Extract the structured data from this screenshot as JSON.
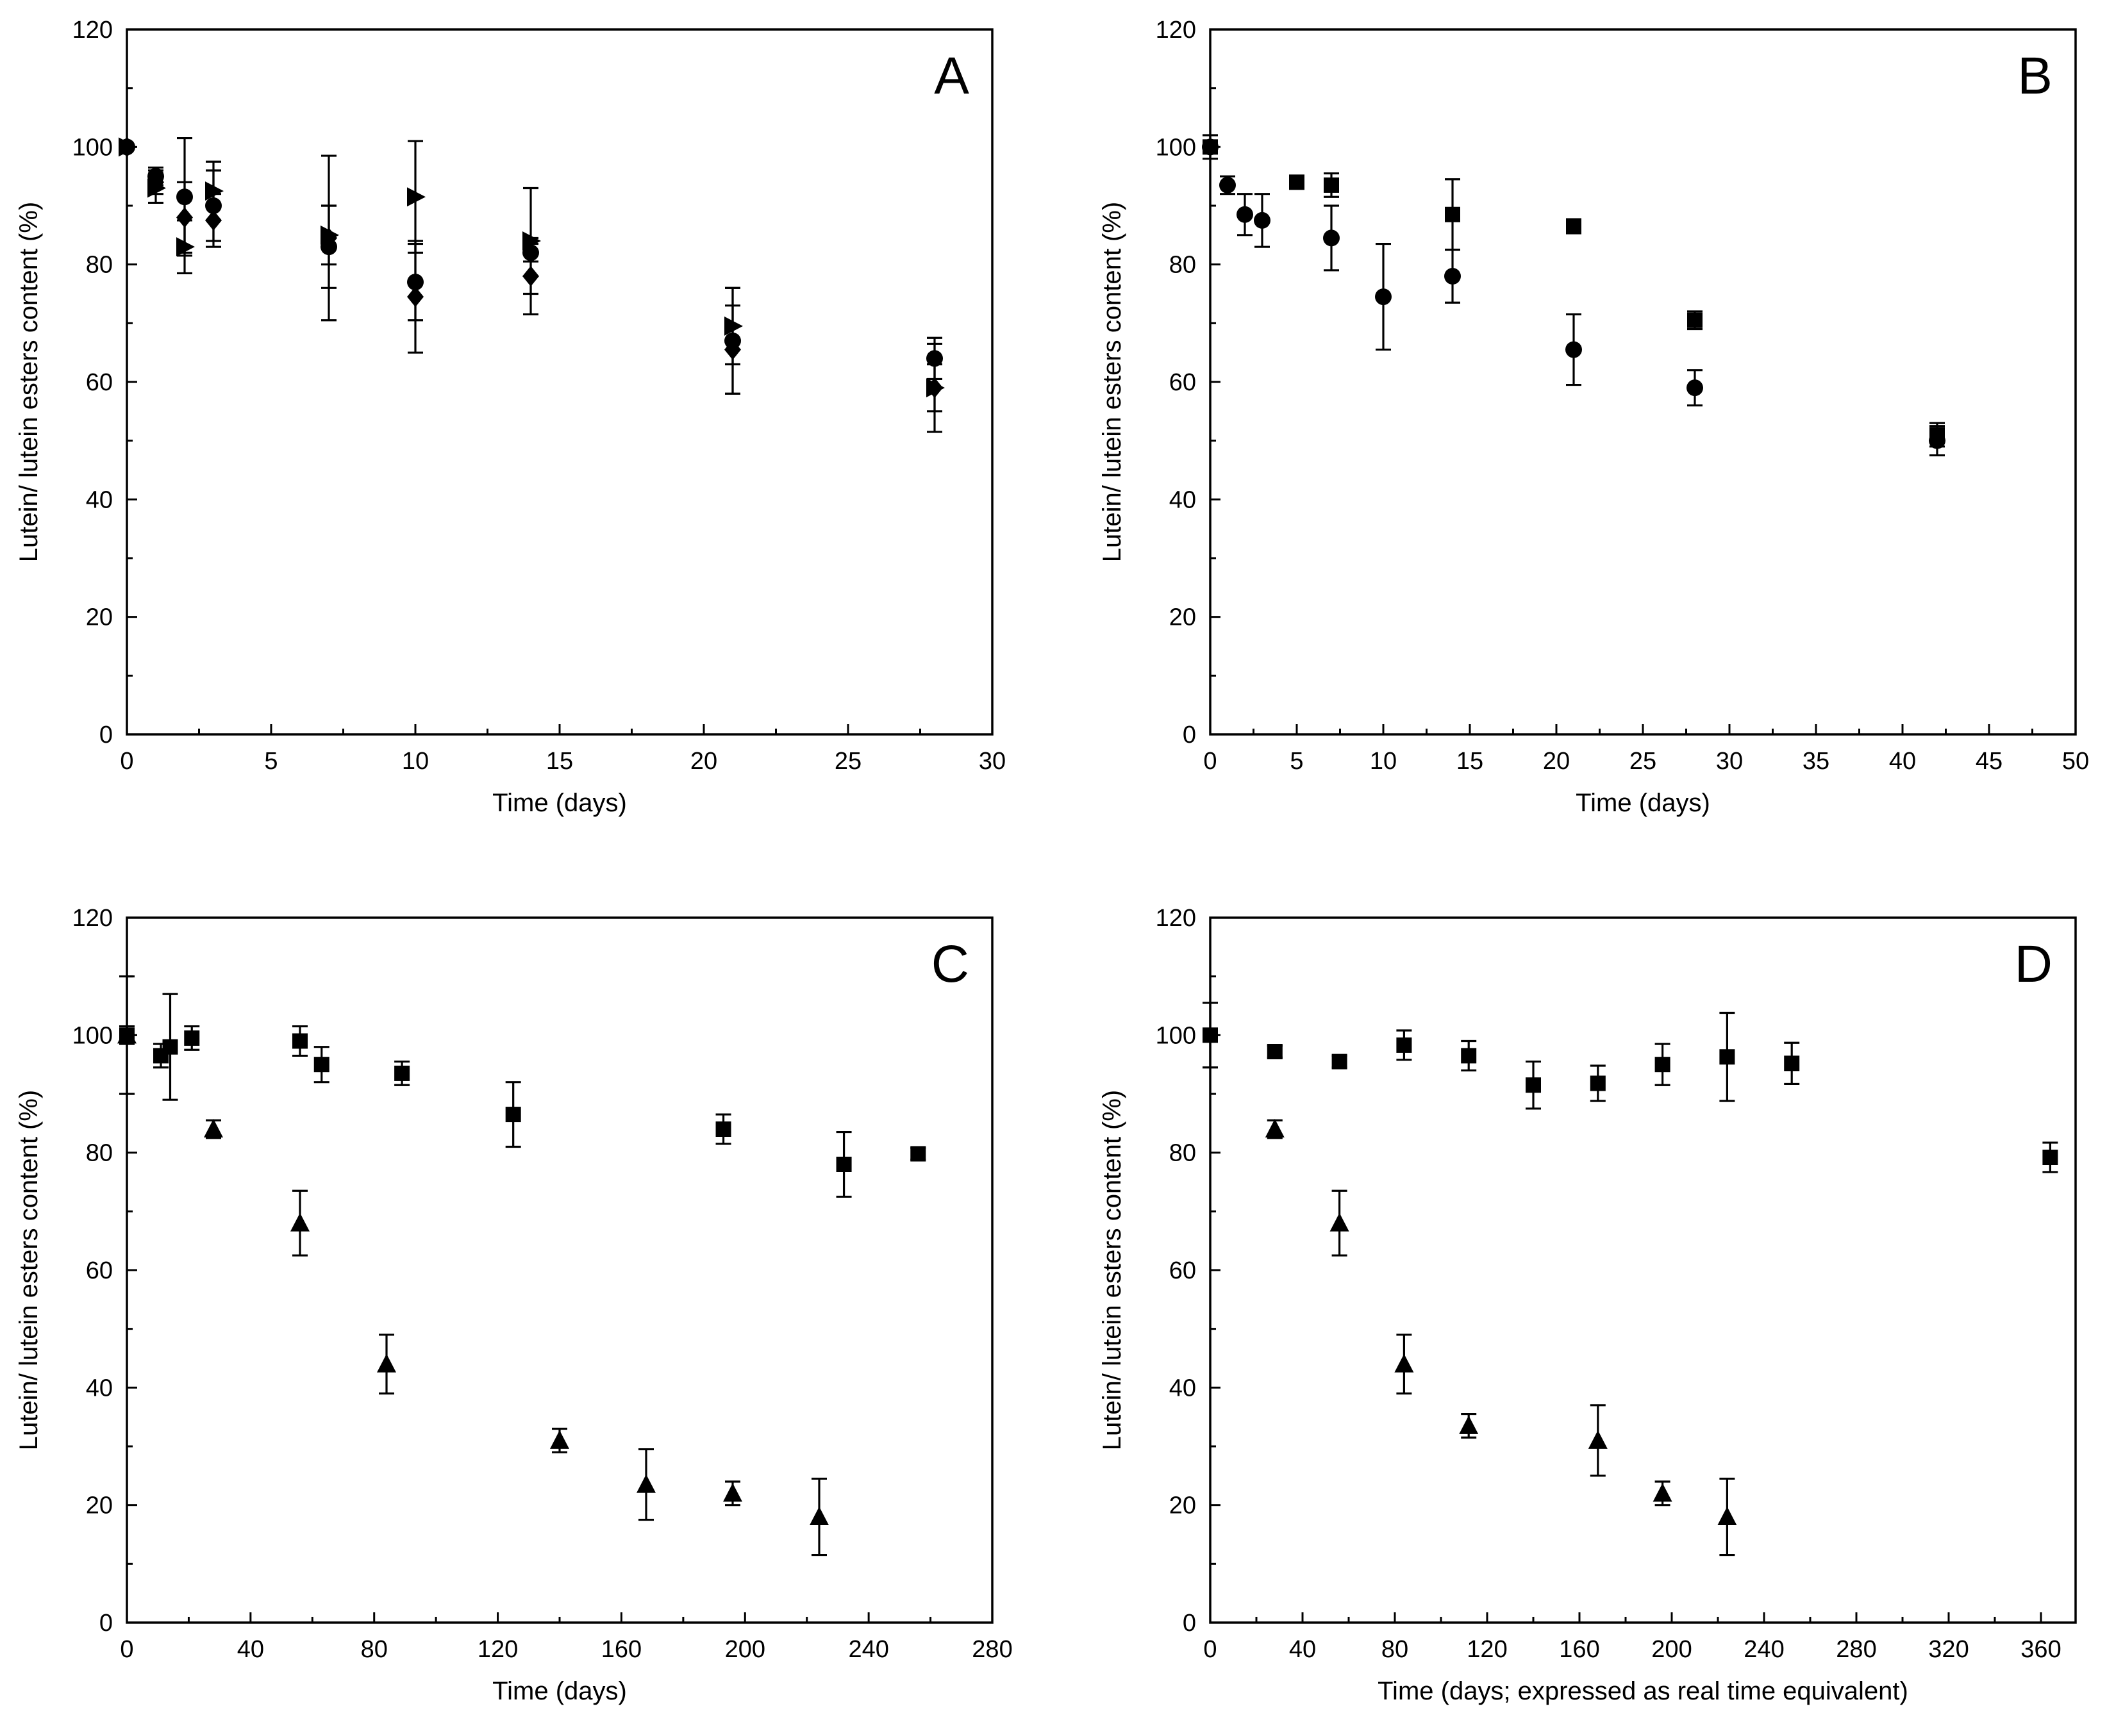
{
  "chart_data": [
    {
      "id": "A",
      "type": "scatter",
      "panel_label": "A",
      "xlabel": "Time (days)",
      "ylabel": "Lutein/ lutein esters content (%)",
      "xlim": [
        0,
        30
      ],
      "ylim": [
        0,
        120
      ],
      "xticks": [
        0,
        5,
        10,
        15,
        20,
        25,
        30
      ],
      "yticks": [
        0,
        20,
        40,
        60,
        80,
        100,
        120
      ],
      "series": [
        {
          "name": "circle",
          "marker": "circle",
          "points": [
            {
              "x": 0,
              "y": 100,
              "err": 0
            },
            {
              "x": 1,
              "y": 95,
              "err": 1.5
            },
            {
              "x": 2,
              "y": 91.5,
              "err": 10
            },
            {
              "x": 3,
              "y": 90,
              "err": 6
            },
            {
              "x": 7,
              "y": 83,
              "err": 7
            },
            {
              "x": 10,
              "y": 77,
              "err": 6.5
            },
            {
              "x": 14,
              "y": 82,
              "err": 1.5
            },
            {
              "x": 21,
              "y": 67,
              "err": 9
            },
            {
              "x": 28,
              "y": 64,
              "err": 3.5
            }
          ]
        },
        {
          "name": "right-triangle",
          "marker": "triangle-right",
          "points": [
            {
              "x": 0,
              "y": 100,
              "err": 0
            },
            {
              "x": 1,
              "y": 93,
              "err": 2.5
            },
            {
              "x": 2,
              "y": 83,
              "err": 4.5
            },
            {
              "x": 3,
              "y": 92.5,
              "err": 5
            },
            {
              "x": 7,
              "y": 85,
              "err": 5
            },
            {
              "x": 10,
              "y": 91.5,
              "err": 9.5
            },
            {
              "x": 14,
              "y": 84,
              "err": 9
            },
            {
              "x": 21,
              "y": 69.5,
              "err": 6.5
            },
            {
              "x": 28,
              "y": 59,
              "err": 4
            }
          ]
        },
        {
          "name": "diamond",
          "marker": "diamond",
          "points": [
            {
              "x": 0,
              "y": 100,
              "err": 0
            },
            {
              "x": 1,
              "y": 94,
              "err": 2
            },
            {
              "x": 2,
              "y": 88,
              "err": 6
            },
            {
              "x": 3,
              "y": 87.5,
              "err": 4.5
            },
            {
              "x": 7,
              "y": 84.5,
              "err": 14
            },
            {
              "x": 10,
              "y": 74.5,
              "err": 9.5
            },
            {
              "x": 14,
              "y": 78,
              "err": 6.5
            },
            {
              "x": 21,
              "y": 65.5,
              "err": 7.5
            },
            {
              "x": 28,
              "y": 59,
              "err": 7.5
            }
          ]
        }
      ]
    },
    {
      "id": "B",
      "type": "scatter",
      "panel_label": "B",
      "xlabel": "Time (days)",
      "ylabel": "Lutein/ lutein esters content (%)",
      "xlim": [
        0,
        50
      ],
      "ylim": [
        0,
        120
      ],
      "xticks": [
        0,
        5,
        10,
        15,
        20,
        25,
        30,
        35,
        40,
        45,
        50
      ],
      "yticks": [
        0,
        20,
        40,
        60,
        80,
        100,
        120
      ],
      "series": [
        {
          "name": "square",
          "marker": "square",
          "points": [
            {
              "x": 0,
              "y": 100,
              "err": 2
            },
            {
              "x": 5,
              "y": 94,
              "err": 1
            },
            {
              "x": 7,
              "y": 93.5,
              "err": 2
            },
            {
              "x": 14,
              "y": 88.5,
              "err": 6
            },
            {
              "x": 21,
              "y": 86.5,
              "err": 1.2
            },
            {
              "x": 28,
              "y": 70.5,
              "err": 1.5
            },
            {
              "x": 42,
              "y": 51,
              "err": 2
            }
          ]
        },
        {
          "name": "circle",
          "marker": "circle",
          "points": [
            {
              "x": 0,
              "y": 100,
              "err": 0
            },
            {
              "x": 1,
              "y": 93.5,
              "err": 1.5
            },
            {
              "x": 2,
              "y": 88.5,
              "err": 3.5
            },
            {
              "x": 3,
              "y": 87.5,
              "err": 4.5
            },
            {
              "x": 7,
              "y": 84.5,
              "err": 5.5
            },
            {
              "x": 10,
              "y": 74.5,
              "err": 9
            },
            {
              "x": 14,
              "y": 78,
              "err": 4.5
            },
            {
              "x": 21,
              "y": 65.5,
              "err": 6
            },
            {
              "x": 28,
              "y": 59,
              "err": 3
            },
            {
              "x": 42,
              "y": 50,
              "err": 2.5
            }
          ]
        }
      ]
    },
    {
      "id": "C",
      "type": "scatter",
      "panel_label": "C",
      "xlabel": "Time (days)",
      "ylabel": "Lutein/ lutein esters content (%)",
      "xlim": [
        0,
        280
      ],
      "ylim": [
        0,
        120
      ],
      "xticks": [
        0,
        40,
        80,
        120,
        160,
        200,
        240,
        280
      ],
      "yticks": [
        0,
        20,
        40,
        60,
        80,
        100,
        120
      ],
      "series": [
        {
          "name": "square",
          "marker": "square",
          "points": [
            {
              "x": 0,
              "y": 100,
              "err": 1.5
            },
            {
              "x": 11,
              "y": 96.5,
              "err": 2
            },
            {
              "x": 14,
              "y": 98,
              "err": 9
            },
            {
              "x": 21,
              "y": 99.5,
              "err": 2
            },
            {
              "x": 56,
              "y": 99,
              "err": 2.5
            },
            {
              "x": 63,
              "y": 95,
              "err": 3
            },
            {
              "x": 89,
              "y": 93.5,
              "err": 2
            },
            {
              "x": 125,
              "y": 86.5,
              "err": 5.5
            },
            {
              "x": 193,
              "y": 84,
              "err": 2.5
            },
            {
              "x": 232,
              "y": 78,
              "err": 5.5
            },
            {
              "x": 256,
              "y": 79.8,
              "err": 1
            }
          ]
        },
        {
          "name": "triangle",
          "marker": "triangle-up",
          "points": [
            {
              "x": 0,
              "y": 100,
              "err": 10
            },
            {
              "x": 28,
              "y": 84,
              "err": 1.5
            },
            {
              "x": 56,
              "y": 68,
              "err": 5.5
            },
            {
              "x": 84,
              "y": 44,
              "err": 5
            },
            {
              "x": 140,
              "y": 31,
              "err": 2
            },
            {
              "x": 168,
              "y": 23.5,
              "err": 6
            },
            {
              "x": 196,
              "y": 22,
              "err": 2
            },
            {
              "x": 224,
              "y": 18,
              "err": 6.5
            }
          ]
        }
      ]
    },
    {
      "id": "D",
      "type": "scatter",
      "panel_label": "D",
      "xlabel": "Time (days; expressed as real time equivalent)",
      "ylabel": "Lutein/ lutein esters content (%)",
      "xlim": [
        0,
        375
      ],
      "ylim": [
        0,
        120
      ],
      "xticks": [
        0,
        40,
        80,
        120,
        160,
        200,
        240,
        280,
        320,
        360
      ],
      "yticks": [
        0,
        20,
        40,
        60,
        80,
        100,
        120
      ],
      "series": [
        {
          "name": "square",
          "marker": "square",
          "points": [
            {
              "x": 0,
              "y": 100,
              "err": 5.5
            },
            {
              "x": 28,
              "y": 97.2,
              "err": 1
            },
            {
              "x": 56,
              "y": 95.5,
              "err": 1
            },
            {
              "x": 84,
              "y": 98.3,
              "err": 2.5
            },
            {
              "x": 112,
              "y": 96.5,
              "err": 2.5
            },
            {
              "x": 140,
              "y": 91.5,
              "err": 4
            },
            {
              "x": 168,
              "y": 91.8,
              "err": 3
            },
            {
              "x": 196,
              "y": 95,
              "err": 3.5
            },
            {
              "x": 224,
              "y": 96.3,
              "err": 7.5
            },
            {
              "x": 252,
              "y": 95.2,
              "err": 3.5
            },
            {
              "x": 364,
              "y": 79.2,
              "err": 2.5
            }
          ]
        },
        {
          "name": "triangle",
          "marker": "triangle-up",
          "points": [
            {
              "x": 28,
              "y": 84,
              "err": 1.5
            },
            {
              "x": 56,
              "y": 68,
              "err": 5.5
            },
            {
              "x": 84,
              "y": 44,
              "err": 5
            },
            {
              "x": 112,
              "y": 33.5,
              "err": 2
            },
            {
              "x": 168,
              "y": 31,
              "err": 6
            },
            {
              "x": 196,
              "y": 22,
              "err": 2
            },
            {
              "x": 224,
              "y": 18,
              "err": 6.5
            }
          ]
        }
      ]
    }
  ]
}
